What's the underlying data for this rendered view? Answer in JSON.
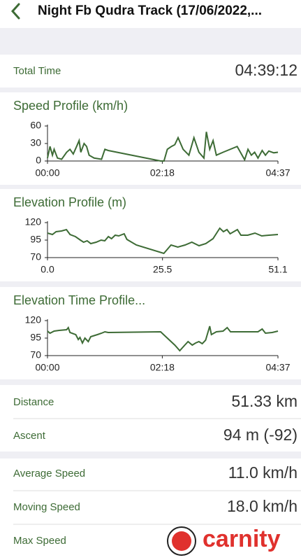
{
  "header": {
    "title": "Night Fb Qudra Track (17/06/2022,..."
  },
  "total_time": {
    "label": "Total Time",
    "value": "04:39:12"
  },
  "chart_data": [
    {
      "type": "line",
      "title": "Speed Profile (km/h)",
      "color": "#3d6b35",
      "x": [
        0,
        3,
        6,
        8,
        12,
        17,
        23,
        27,
        31,
        35,
        38,
        40,
        44,
        47,
        50,
        56,
        65,
        69,
        73,
        136,
        140,
        144,
        149,
        153,
        157,
        163,
        170,
        176,
        182,
        188,
        191,
        195,
        199,
        203,
        211,
        228,
        237,
        241,
        245,
        249,
        253,
        258,
        262,
        266,
        272,
        277
      ],
      "values": [
        5,
        25,
        10,
        20,
        5,
        3,
        15,
        20,
        12,
        25,
        35,
        15,
        30,
        25,
        10,
        5,
        3,
        20,
        18,
        0,
        0,
        20,
        25,
        28,
        40,
        20,
        10,
        40,
        15,
        5,
        50,
        20,
        35,
        10,
        15,
        25,
        2,
        20,
        10,
        15,
        5,
        18,
        10,
        17,
        14,
        15
      ],
      "xlim": [
        0,
        277
      ],
      "ylim": [
        0,
        60
      ],
      "yticks": [
        0,
        30,
        60
      ],
      "xticks": [
        {
          "value": 0,
          "label": "00:00"
        },
        {
          "value": 138,
          "label": "02:18"
        },
        {
          "value": 277,
          "label": "04:37"
        }
      ]
    },
    {
      "type": "line",
      "title": "Elevation Profile (m)",
      "color": "#3d6b35",
      "x": [
        0,
        1.1,
        1.9,
        3.1,
        4.2,
        5.0,
        6.2,
        7.3,
        8.0,
        8.8,
        9.6,
        10.8,
        11.9,
        12.7,
        13.5,
        14.2,
        15.0,
        15.8,
        17.0,
        17.6,
        19.7,
        25.8,
        27.4,
        28.9,
        30.5,
        32.0,
        33.6,
        35.1,
        36.7,
        38.2,
        39.0,
        39.8,
        40.5,
        42.1,
        42.9,
        44.4,
        46.0,
        47.5,
        49.1,
        51.1
      ],
      "values": [
        105,
        103,
        107,
        108,
        110,
        103,
        100,
        95,
        92,
        94,
        90,
        92,
        95,
        94,
        100,
        97,
        102,
        101,
        104,
        96,
        88,
        76,
        88,
        85,
        88,
        92,
        87,
        90,
        97,
        112,
        107,
        110,
        104,
        110,
        102,
        102,
        105,
        101,
        102,
        103
      ],
      "xlim": [
        0,
        51.1
      ],
      "ylim": [
        70,
        120
      ],
      "yticks": [
        70,
        95,
        120
      ],
      "xticks": [
        {
          "value": 0,
          "label": "0.0"
        },
        25.5,
        51.1
      ]
    },
    {
      "type": "line",
      "title": "Elevation Time Profile...",
      "color": "#3d6b35",
      "x": [
        0,
        3,
        8,
        14,
        23,
        25,
        27,
        34,
        37,
        39,
        42,
        45,
        49,
        52,
        60,
        65,
        69,
        73,
        136,
        144,
        153,
        159,
        165,
        169,
        174,
        178,
        182,
        186,
        190,
        195,
        197,
        203,
        211,
        216,
        220,
        237,
        253,
        258,
        262,
        270,
        277
      ],
      "values": [
        105,
        102,
        105,
        106,
        107,
        110,
        103,
        100,
        93,
        96,
        88,
        95,
        90,
        97,
        100,
        102,
        104,
        103,
        104,
        95,
        85,
        77,
        85,
        90,
        85,
        88,
        90,
        87,
        92,
        112,
        100,
        104,
        105,
        110,
        104,
        104,
        104,
        108,
        102,
        103,
        105
      ],
      "xlim": [
        0,
        277
      ],
      "ylim": [
        70,
        120
      ],
      "yticks": [
        70,
        95,
        120
      ],
      "xticks": [
        {
          "value": 0,
          "label": "00:00"
        },
        {
          "value": 138,
          "label": "02:18"
        },
        {
          "value": 277,
          "label": "04:37"
        }
      ]
    }
  ],
  "stats": [
    {
      "label": "Distance",
      "value": "51.33 km"
    },
    {
      "label": "Ascent",
      "value": "94 m (-92)"
    },
    {
      "label": "Average Speed",
      "value": "11.0 km/h"
    },
    {
      "label": "Moving Speed",
      "value": "18.0 km/h"
    },
    {
      "label": "Max Speed"
    }
  ],
  "watermark": "carnity"
}
